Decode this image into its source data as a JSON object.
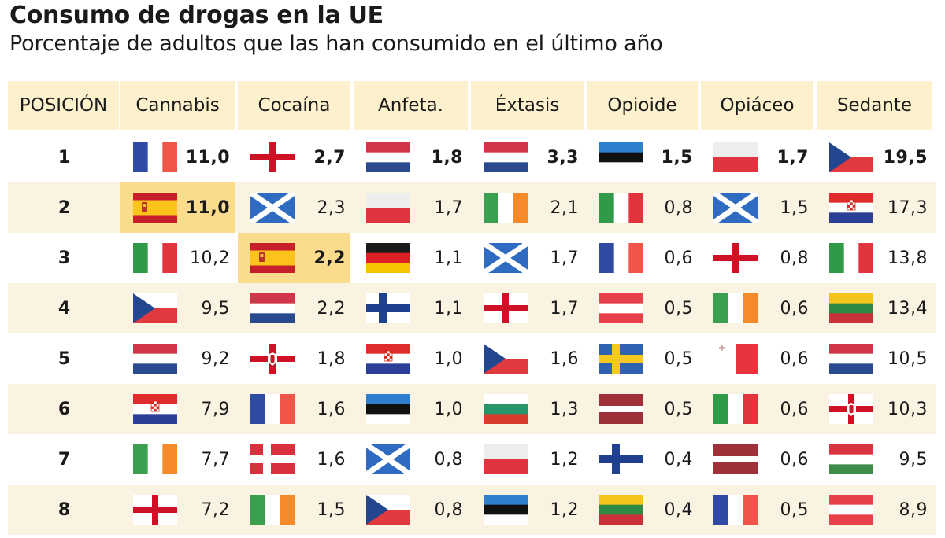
{
  "title": "Consumo de drogas en la UE",
  "subtitle": "Porcentaje de adultos que las han consumido en el último año",
  "colors": {
    "header_bg": "#fdf0cc",
    "row_alt_bg": "#fbf3e2",
    "spain_highlight": "#fbdb8c"
  },
  "chart_data": {
    "type": "table",
    "title": "Consumo de drogas en la UE",
    "subtitle": "Porcentaje de adultos que las han consumido en el último año",
    "rank_header": "POSICIÓN",
    "ranks": [
      "1",
      "2",
      "3",
      "4",
      "5",
      "6",
      "7",
      "8"
    ],
    "highlight_country": "spain",
    "columns": [
      {
        "name": "Cannabis",
        "entries": [
          {
            "country": "france",
            "value": "11,0"
          },
          {
            "country": "spain",
            "value": "11,0"
          },
          {
            "country": "italy",
            "value": "10,2"
          },
          {
            "country": "czech-republic",
            "value": "9,5"
          },
          {
            "country": "netherlands",
            "value": "9,2"
          },
          {
            "country": "croatia",
            "value": "7,9"
          },
          {
            "country": "ireland",
            "value": "7,7"
          },
          {
            "country": "england",
            "value": "7,2"
          }
        ]
      },
      {
        "name": "Cocaína",
        "entries": [
          {
            "country": "england",
            "value": "2,7"
          },
          {
            "country": "scotland",
            "value": "2,3"
          },
          {
            "country": "spain",
            "value": "2,2"
          },
          {
            "country": "netherlands",
            "value": "2,2"
          },
          {
            "country": "northern-ireland",
            "value": "1,8"
          },
          {
            "country": "france",
            "value": "1,6"
          },
          {
            "country": "denmark",
            "value": "1,6"
          },
          {
            "country": "ireland",
            "value": "1,5"
          }
        ]
      },
      {
        "name": "Anfeta.",
        "entries": [
          {
            "country": "netherlands",
            "value": "1,8"
          },
          {
            "country": "poland",
            "value": "1,7"
          },
          {
            "country": "germany",
            "value": "1,1"
          },
          {
            "country": "finland",
            "value": "1,1"
          },
          {
            "country": "croatia",
            "value": "1,0"
          },
          {
            "country": "estonia",
            "value": "1,0"
          },
          {
            "country": "scotland",
            "value": "0,8"
          },
          {
            "country": "czech-republic",
            "value": "0,8"
          }
        ]
      },
      {
        "name": "Éxtasis",
        "entries": [
          {
            "country": "netherlands",
            "value": "3,3"
          },
          {
            "country": "ireland",
            "value": "2,1"
          },
          {
            "country": "scotland",
            "value": "1,7"
          },
          {
            "country": "england",
            "value": "1,7"
          },
          {
            "country": "czech-republic",
            "value": "1,6"
          },
          {
            "country": "bulgaria",
            "value": "1,3"
          },
          {
            "country": "poland",
            "value": "1,2"
          },
          {
            "country": "estonia",
            "value": "1,2"
          }
        ]
      },
      {
        "name": "Opioide",
        "entries": [
          {
            "country": "estonia",
            "value": "1,5"
          },
          {
            "country": "italy",
            "value": "0,8"
          },
          {
            "country": "france",
            "value": "0,6"
          },
          {
            "country": "austria",
            "value": "0,5"
          },
          {
            "country": "sweden",
            "value": "0,5"
          },
          {
            "country": "latvia",
            "value": "0,5"
          },
          {
            "country": "finland",
            "value": "0,4"
          },
          {
            "country": "lithuania",
            "value": "0,4"
          }
        ]
      },
      {
        "name": "Opiáceo",
        "entries": [
          {
            "country": "poland",
            "value": "1,7"
          },
          {
            "country": "scotland",
            "value": "1,5"
          },
          {
            "country": "england",
            "value": "0,8"
          },
          {
            "country": "ireland",
            "value": "0,6"
          },
          {
            "country": "malta",
            "value": "0,6"
          },
          {
            "country": "italy",
            "value": "0,6"
          },
          {
            "country": "latvia",
            "value": "0,6"
          },
          {
            "country": "france",
            "value": "0,5"
          }
        ]
      },
      {
        "name": "Sedante",
        "entries": [
          {
            "country": "czech-republic",
            "value": "19,5"
          },
          {
            "country": "croatia",
            "value": "17,3"
          },
          {
            "country": "italy",
            "value": "13,8"
          },
          {
            "country": "lithuania",
            "value": "13,4"
          },
          {
            "country": "netherlands",
            "value": "10,5"
          },
          {
            "country": "northern-ireland",
            "value": "10,3"
          },
          {
            "country": "hungary",
            "value": "9,5"
          },
          {
            "country": "austria",
            "value": "8,9"
          }
        ]
      }
    ]
  }
}
